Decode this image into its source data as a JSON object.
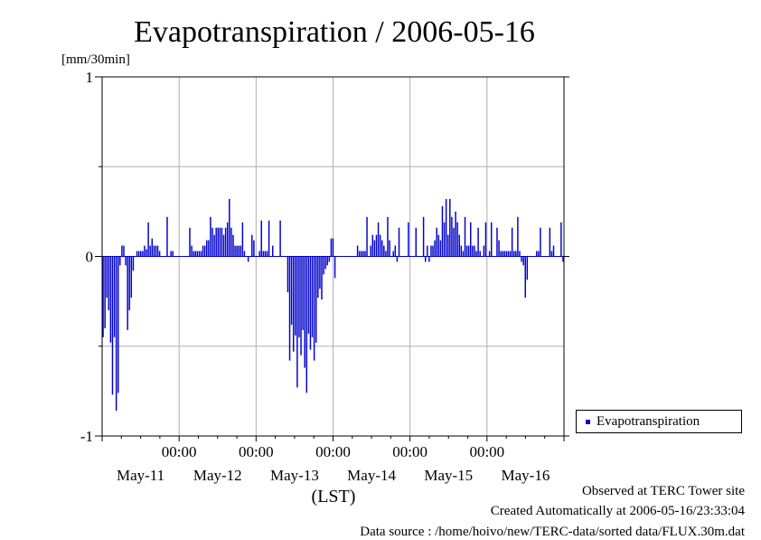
{
  "chart_data": {
    "type": "bar",
    "title": "Evapotranspiration / 2006-05-16",
    "ylabel": "[mm/30min]",
    "xlabel": "(LST)",
    "ylim": [
      -1,
      1
    ],
    "yticks": [
      "1",
      "0",
      "-1"
    ],
    "x_tick_labels": [
      "00:00",
      "00:00",
      "00:00",
      "00:00",
      "00:00"
    ],
    "x_date_labels": [
      "May-11",
      "May-12",
      "May-13",
      "May-14",
      "May-15",
      "May-16"
    ],
    "x_range_days": [
      -1.0,
      5.0
    ],
    "legend": {
      "position": "right",
      "entries": [
        "Evapotranspiration"
      ]
    },
    "series": [
      {
        "name": "Evapotranspiration",
        "color": "#0000cc",
        "values": [
          -0.45,
          -0.4,
          -0.23,
          -0.3,
          -0.48,
          -0.77,
          -0.45,
          -0.86,
          -0.76,
          -0.05,
          0.06,
          0.06,
          -0.05,
          -0.41,
          -0.3,
          -0.23,
          -0.08,
          0,
          0.03,
          0.03,
          0.03,
          0.03,
          0.06,
          0.04,
          0.19,
          0.06,
          0.1,
          0.06,
          0.06,
          0.06,
          0.03,
          0,
          0,
          0,
          0.22,
          0,
          0.03,
          0.03,
          0,
          0,
          0,
          0,
          0,
          0,
          0,
          0,
          0.16,
          0.06,
          0.03,
          0.03,
          0.03,
          0.03,
          0.03,
          0.06,
          0.06,
          0.09,
          0.09,
          0.22,
          0.16,
          0.12,
          0.16,
          0.16,
          0.16,
          0.16,
          0.12,
          0.16,
          0.19,
          0.32,
          0.16,
          0.12,
          0.06,
          0.06,
          0.06,
          0.06,
          0.19,
          0.03,
          0,
          -0.03,
          0,
          0.12,
          0.09,
          0,
          0,
          0.03,
          0.2,
          0.03,
          0.03,
          0.03,
          0.2,
          0,
          0.06,
          0,
          0,
          0,
          0.2,
          0,
          0,
          0,
          -0.2,
          -0.58,
          -0.38,
          -0.53,
          -0.44,
          -0.73,
          -0.45,
          -0.55,
          -0.41,
          -0.62,
          -0.76,
          -0.43,
          -0.52,
          -0.45,
          -0.58,
          -0.48,
          -0.23,
          -0.18,
          -0.24,
          -0.1,
          -0.07,
          -0.05,
          -0.03,
          0.1,
          0.1,
          -0.12,
          0,
          0,
          0,
          0,
          0,
          0,
          0,
          0,
          0,
          0,
          0,
          0.06,
          0.03,
          0.03,
          0.03,
          0.03,
          0.22,
          0,
          0.06,
          0.12,
          0.09,
          0.12,
          0.19,
          0.12,
          0.09,
          0.06,
          0.03,
          0.22,
          0.09,
          0,
          0.03,
          0.06,
          -0.03,
          0.16,
          0,
          0,
          0,
          0,
          0.19,
          0,
          0,
          0,
          0.16,
          0,
          0,
          0,
          0.22,
          -0.03,
          0.06,
          -0.03,
          0.06,
          0.06,
          0.09,
          0.16,
          0.12,
          0.09,
          0.28,
          0.19,
          0.32,
          0.12,
          0.32,
          0.22,
          0.16,
          0.25,
          0.19,
          0.12,
          0.06,
          0.03,
          0.22,
          0.06,
          0.06,
          0.19,
          0.06,
          0.06,
          0.03,
          0.16,
          0.03,
          0,
          0.06,
          0.19,
          0,
          0.03,
          0.19,
          0,
          0,
          0.16,
          0.09,
          0.03,
          0.03,
          0.03,
          0.03,
          0.03,
          0.03,
          0.16,
          0.03,
          0.03,
          0.22,
          0.03,
          -0.03,
          -0.05,
          -0.23,
          -0.13,
          0,
          0,
          0,
          0,
          0.03,
          0.03,
          0.16,
          0,
          0,
          0,
          0,
          0.16,
          0.03,
          0.06,
          0,
          0,
          0,
          0.19,
          -0.03
        ]
      }
    ]
  },
  "footer": {
    "line1": "Observed at TERC Tower site",
    "line2": "Created Automatically at 2006-05-16/23:33:04",
    "line3": "Data source : /home/hoivo/new/TERC-data/sorted  data/FLUX.30m.dat"
  }
}
